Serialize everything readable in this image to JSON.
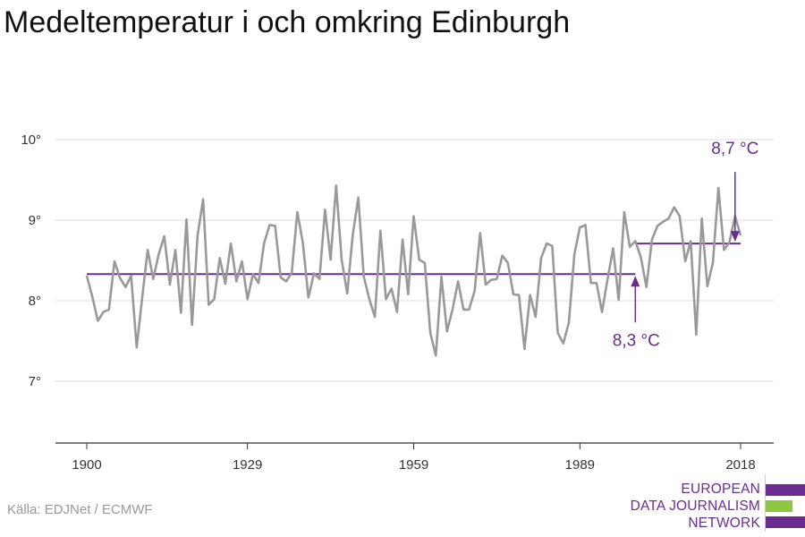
{
  "header": {
    "title": "Medeltemperatur i och omkring Edinburgh"
  },
  "footer": {
    "source": "Källa: EDJNet / ECMWF"
  },
  "logo": {
    "lines": [
      "EUROPEAN",
      "DATA JOURNALISM",
      "NETWORK"
    ],
    "text_color": "#6a2c91",
    "bar_colors": [
      "#6a2c91",
      "#8dc63f",
      "#6a2c91"
    ]
  },
  "chart_data": {
    "type": "line",
    "title": "Medeltemperatur i och omkring Edinburgh",
    "xlabel": "",
    "ylabel": "",
    "xlim": [
      1900,
      2018
    ],
    "ylim": [
      6.3,
      10.5
    ],
    "x_ticks": [
      1900,
      1929,
      1959,
      1989,
      2018
    ],
    "x_tick_labels": [
      "1900",
      "1929",
      "1959",
      "1989",
      "2018"
    ],
    "y_ticks": [
      7,
      8,
      9,
      10
    ],
    "y_tick_labels": [
      "7°",
      "8°",
      "9°",
      "10°"
    ],
    "grid": true,
    "colors": {
      "series": "#999999",
      "reference": "#6a2c91"
    },
    "series": [
      {
        "x_start": 1900,
        "values": [
          8.31,
          8.05,
          7.75,
          7.86,
          7.89,
          8.49,
          8.28,
          8.17,
          8.31,
          7.42,
          8.03,
          8.63,
          8.27,
          8.58,
          8.8,
          8.2,
          8.63,
          7.85,
          9.01,
          7.7,
          8.81,
          9.26,
          7.95,
          8.02,
          8.53,
          8.21,
          8.71,
          8.24,
          8.49,
          8.02,
          8.33,
          8.22,
          8.71,
          8.94,
          8.93,
          8.29,
          8.24,
          8.35,
          9.1,
          8.72,
          8.04,
          8.34,
          8.27,
          9.13,
          8.51,
          9.43,
          8.51,
          8.09,
          8.82,
          9.28,
          8.3,
          8.02,
          7.8,
          8.87,
          8.02,
          8.15,
          7.86,
          8.76,
          8.08,
          9.05,
          8.51,
          8.47,
          7.6,
          7.32,
          8.3,
          7.62,
          7.89,
          8.24,
          7.89,
          7.89,
          8.12,
          8.84,
          8.2,
          8.26,
          8.27,
          8.56,
          8.47,
          8.08,
          8.07,
          7.4,
          8.07,
          7.8,
          8.53,
          8.71,
          8.68,
          7.6,
          7.47,
          7.73,
          8.58,
          8.91,
          8.94,
          8.22,
          8.22,
          7.86,
          8.27,
          8.65,
          8.01,
          9.1,
          8.67,
          8.74,
          8.54,
          8.17,
          8.76,
          8.93,
          8.98,
          9.02,
          9.16,
          9.05,
          8.49,
          8.74,
          7.58,
          9.02,
          8.18,
          8.47,
          9.4,
          8.63,
          8.73,
          9.05,
          8.81
        ]
      }
    ],
    "reference_lines": [
      {
        "x_from": 1900,
        "x_to": 1999,
        "y": 8.33
      },
      {
        "x_from": 1999,
        "x_to": 2018,
        "y": 8.71
      }
    ],
    "annotations": [
      {
        "label": "8,3 °C",
        "x": 1999,
        "y": 8.33,
        "placement": "below"
      },
      {
        "label": "8,7 °C",
        "x": 2017,
        "y": 8.71,
        "placement": "above"
      }
    ]
  }
}
